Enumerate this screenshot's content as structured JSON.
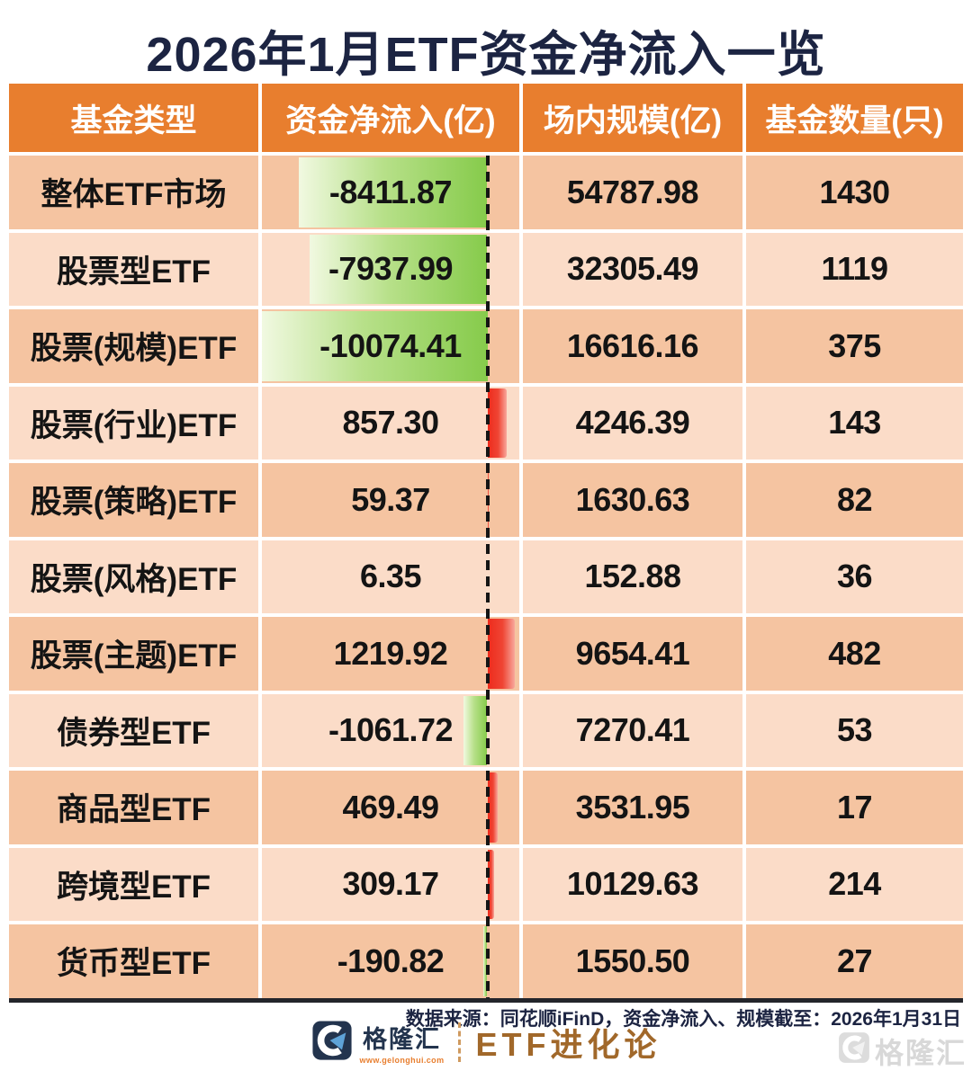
{
  "title": "2026年1月ETF资金净流入一览",
  "colors": {
    "header_bg": "#e87e2e",
    "row_dark": "#f5c4a1",
    "row_light": "#fbdcc8",
    "bar_negative_green": "#86cb4b",
    "bar_positive_red": "#ee2b1c",
    "title_navy": "#1c2442",
    "brand_bronze": "#a1682a",
    "logo_navy": "#23344e",
    "logo_blue": "#5ea3d8",
    "watermark_gray": "#d8d8d8"
  },
  "table": {
    "columns": [
      "基金类型",
      "资金净流入(亿)",
      "场内规模(亿)",
      "基金数量(只)"
    ],
    "rows": [
      {
        "type": "整体ETF市场",
        "flow": "-8411.87",
        "flow_value": -8411.87,
        "size": "54787.98",
        "count": "1430"
      },
      {
        "type": "股票型ETF",
        "flow": "-7937.99",
        "flow_value": -7937.99,
        "size": "32305.49",
        "count": "1119"
      },
      {
        "type": "股票(规模)ETF",
        "flow": "-10074.41",
        "flow_value": -10074.41,
        "size": "16616.16",
        "count": "375"
      },
      {
        "type": "股票(行业)ETF",
        "flow": "857.30",
        "flow_value": 857.3,
        "size": "4246.39",
        "count": "143"
      },
      {
        "type": "股票(策略)ETF",
        "flow": "59.37",
        "flow_value": 59.37,
        "size": "1630.63",
        "count": "82"
      },
      {
        "type": "股票(风格)ETF",
        "flow": "6.35",
        "flow_value": 6.35,
        "size": "152.88",
        "count": "36"
      },
      {
        "type": "股票(主题)ETF",
        "flow": "1219.92",
        "flow_value": 1219.92,
        "size": "9654.41",
        "count": "482"
      },
      {
        "type": "债券型ETF",
        "flow": "-1061.72",
        "flow_value": -1061.72,
        "size": "7270.41",
        "count": "53"
      },
      {
        "type": "商品型ETF",
        "flow": "469.49",
        "flow_value": 469.49,
        "size": "3531.95",
        "count": "17"
      },
      {
        "type": "跨境型ETF",
        "flow": "309.17",
        "flow_value": 309.17,
        "size": "10129.63",
        "count": "214"
      },
      {
        "type": "货币型ETF",
        "flow": "-190.82",
        "flow_value": -190.82,
        "size": "1550.50",
        "count": "27"
      }
    ]
  },
  "footer": {
    "source": "数据来源：同花顺iFinD，资金净流入、规模截至：2026年1月31日",
    "brand": {
      "name": "格隆汇",
      "url": "www.gelonghui.com",
      "column": "ETF进化论"
    },
    "watermark": "格隆汇"
  },
  "chart_data": {
    "type": "table",
    "title": "2026年1月ETF资金净流入一览",
    "columns": [
      "基金类型",
      "资金净流入(亿)",
      "场内规模(亿)",
      "基金数量(只)"
    ],
    "rows": [
      [
        "整体ETF市场",
        -8411.87,
        54787.98,
        1430
      ],
      [
        "股票型ETF",
        -7937.99,
        32305.49,
        1119
      ],
      [
        "股票(规模)ETF",
        -10074.41,
        16616.16,
        375
      ],
      [
        "股票(行业)ETF",
        857.3,
        4246.39,
        143
      ],
      [
        "股票(策略)ETF",
        59.37,
        1630.63,
        82
      ],
      [
        "股票(风格)ETF",
        6.35,
        152.88,
        36
      ],
      [
        "股票(主题)ETF",
        1219.92,
        9654.41,
        482
      ],
      [
        "债券型ETF",
        -1061.72,
        7270.41,
        53
      ],
      [
        "商品型ETF",
        469.49,
        3531.95,
        17
      ],
      [
        "跨境型ETF",
        309.17,
        10129.63,
        214
      ],
      [
        "货币型ETF",
        -190.82,
        1550.5,
        27
      ]
    ],
    "bar_column": "资金净流入(亿)",
    "bar_style": {
      "negative": "green gradient bar extending left of dashed zero line",
      "positive": "red gradient bar extending right of dashed zero line"
    },
    "notes": "in-cell bar chart, bar length proportional to |资金净流入|, zero axis drawn as vertical black dashed line"
  }
}
